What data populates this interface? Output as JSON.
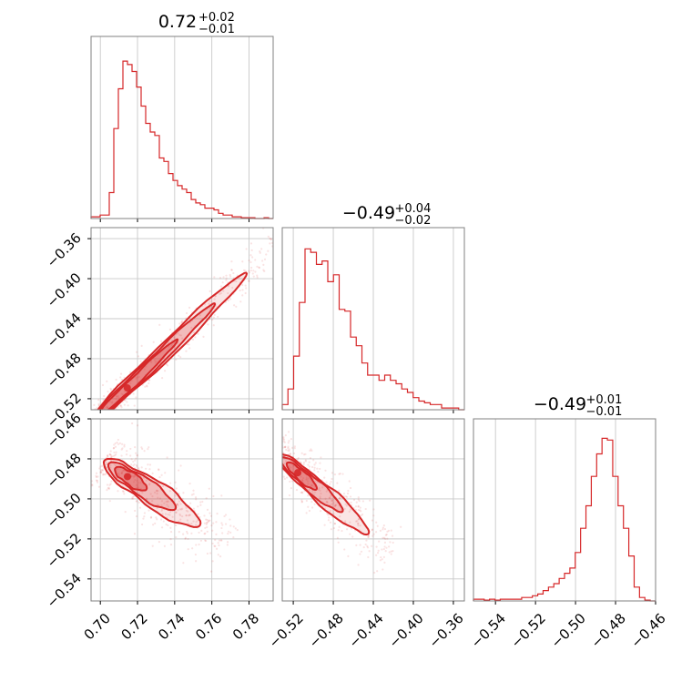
{
  "chart_data": {
    "type": "corner",
    "accent_color": "#d62728",
    "grid": true,
    "parameters": [
      {
        "title": {
          "value": "0.72",
          "upper": "+0.02",
          "lower": "−0.01"
        },
        "range": [
          0.695,
          0.793
        ],
        "ticks": [
          0.7,
          0.72,
          0.74,
          0.76,
          0.78
        ],
        "tick_labels": [
          "0.70",
          "0.72",
          "0.74",
          "0.76",
          "0.78"
        ],
        "histogram": [
          0.01,
          0.01,
          0.02,
          0.02,
          0.15,
          0.52,
          0.75,
          0.91,
          0.89,
          0.85,
          0.76,
          0.65,
          0.55,
          0.5,
          0.48,
          0.35,
          0.33,
          0.26,
          0.22,
          0.19,
          0.17,
          0.15,
          0.11,
          0.09,
          0.08,
          0.06,
          0.06,
          0.05,
          0.03,
          0.02,
          0.02,
          0.01,
          0.01,
          0.005,
          0.005,
          0.005,
          0.0,
          0.0,
          0.005,
          0.0
        ]
      },
      {
        "title": {
          "value": "−0.49",
          "upper": "+0.04",
          "lower": "−0.02"
        },
        "range": [
          -0.531,
          -0.349
        ],
        "ticks": [
          -0.52,
          -0.48,
          -0.44,
          -0.4,
          -0.36
        ],
        "tick_labels": [
          "−0.52",
          "−0.48",
          "−0.44",
          "−0.40",
          "−0.36"
        ],
        "histogram": [
          0.03,
          0.12,
          0.31,
          0.62,
          0.93,
          0.91,
          0.84,
          0.86,
          0.74,
          0.78,
          0.58,
          0.57,
          0.42,
          0.37,
          0.27,
          0.2,
          0.2,
          0.17,
          0.2,
          0.17,
          0.15,
          0.12,
          0.1,
          0.07,
          0.05,
          0.04,
          0.03,
          0.03,
          0.01,
          0.01,
          0.01,
          0.0
        ]
      },
      {
        "title": {
          "value": "−0.49",
          "upper": "+0.01",
          "lower": "−0.01"
        },
        "range": [
          -0.551,
          -0.46
        ],
        "ticks": [
          -0.54,
          -0.52,
          -0.5,
          -0.48,
          -0.46
        ],
        "tick_labels": [
          "−0.54",
          "−0.52",
          "−0.50",
          "−0.48",
          "−0.46"
        ],
        "histogram": [
          0.01,
          0.01,
          0.005,
          0.01,
          0.005,
          0.01,
          0.01,
          0.01,
          0.01,
          0.02,
          0.02,
          0.03,
          0.04,
          0.06,
          0.08,
          0.1,
          0.13,
          0.16,
          0.19,
          0.28,
          0.42,
          0.55,
          0.72,
          0.85,
          0.94,
          0.93,
          0.72,
          0.55,
          0.42,
          0.26,
          0.08,
          0.02,
          0.005,
          0.0
        ]
      }
    ],
    "pairs": [
      {
        "x_param": 0,
        "y_param": 1,
        "center": [
          0.7135,
          -0.511
        ],
        "direction": [
          0.02,
          0.036
        ],
        "cross": [
          0.0035,
          -0.002
        ],
        "contours": [
          {
            "level": 1,
            "t": [
              -0.8,
              1.4
            ],
            "w": 0.7
          },
          {
            "level": 2,
            "t": [
              -0.95,
              2.4
            ],
            "w": 1.0
          },
          {
            "level": 3,
            "t": [
              -1.05,
              3.25
            ],
            "w": 1.35
          }
        ],
        "n_points": 450,
        "point_t_range": [
          -1.0,
          4.8
        ],
        "point_spread": 2.2
      },
      {
        "x_param": 0,
        "y_param": 2,
        "center": [
          0.714,
          -0.4885
        ],
        "direction": [
          0.012,
          -0.0075
        ],
        "cross": [
          0.003,
          0.0045
        ],
        "contours": [
          {
            "level": 1,
            "t": [
              -0.5,
              0.9
            ],
            "w": 0.6
          },
          {
            "level": 2,
            "t": [
              -0.8,
              2.2
            ],
            "w": 0.9
          },
          {
            "level": 3,
            "t": [
              -1.0,
              3.3
            ],
            "w": 1.25
          }
        ],
        "n_points": 450,
        "point_t_range": [
          -1.0,
          4.6
        ],
        "point_spread": 2.4
      },
      {
        "x_param": 1,
        "y_param": 2,
        "center": [
          -0.5165,
          -0.4865
        ],
        "direction": [
          0.02,
          -0.0085
        ],
        "cross": [
          0.0028,
          0.0042
        ],
        "contours": [
          {
            "level": 1,
            "t": [
              -0.5,
              1.0
            ],
            "w": 0.6
          },
          {
            "level": 2,
            "t": [
              -0.8,
              2.3
            ],
            "w": 0.9
          },
          {
            "level": 3,
            "t": [
              -1.0,
              3.6
            ],
            "w": 1.2
          }
        ],
        "n_points": 450,
        "point_t_range": [
          -1.0,
          4.8
        ],
        "point_spread": 2.4
      }
    ]
  }
}
